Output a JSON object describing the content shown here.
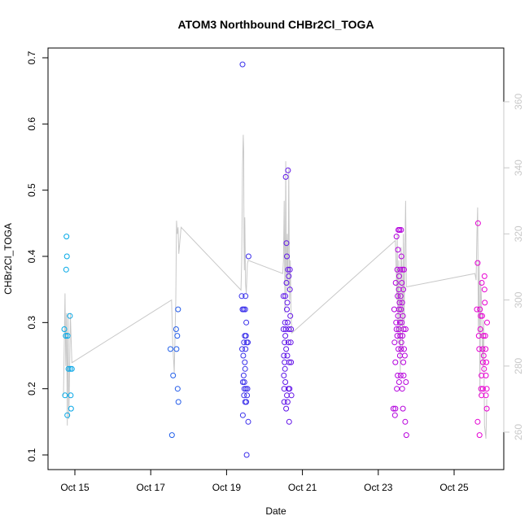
{
  "chart_data": {
    "type": "scatter",
    "title": "ATOM3 Northbound CHBr2Cl_TOGA",
    "xlabel": "Date",
    "ylabel": "CHBr2Cl_TOGA",
    "x_range_days": [
      14.5,
      26.0
    ],
    "ylim": [
      0.08,
      0.72
    ],
    "y2lim": [
      257,
      368
    ],
    "x_ticks": [
      {
        "day": 15,
        "label": "Oct 15"
      },
      {
        "day": 17,
        "label": "Oct 17"
      },
      {
        "day": 19,
        "label": "Oct 19"
      },
      {
        "day": 21,
        "label": "Oct 21"
      },
      {
        "day": 23,
        "label": "Oct 23"
      },
      {
        "day": 25,
        "label": "Oct 25"
      }
    ],
    "y_ticks": [
      {
        "value": 0.1,
        "label": "0.1"
      },
      {
        "value": 0.2,
        "label": "0.2"
      },
      {
        "value": 0.3,
        "label": "0.3"
      },
      {
        "value": 0.4,
        "label": "0.4"
      },
      {
        "value": 0.5,
        "label": "0.5"
      },
      {
        "value": 0.6,
        "label": "0.6"
      },
      {
        "value": 0.7,
        "label": "0.7"
      }
    ],
    "y2_ticks": [
      {
        "value": 260,
        "label": "260"
      },
      {
        "value": 280,
        "label": "280"
      },
      {
        "value": 300,
        "label": "300"
      },
      {
        "value": 320,
        "label": "320"
      },
      {
        "value": 340,
        "label": "340"
      },
      {
        "value": 360,
        "label": "360"
      }
    ],
    "grid": false,
    "line_color": "#c8c8c8",
    "points": [
      [
        14.72,
        0.29
      ],
      [
        14.74,
        0.19
      ],
      [
        14.76,
        0.28
      ],
      [
        14.77,
        0.38
      ],
      [
        14.78,
        0.43
      ],
      [
        14.79,
        0.4
      ],
      [
        14.8,
        0.16
      ],
      [
        14.81,
        0.28
      ],
      [
        14.83,
        0.23
      ],
      [
        14.87,
        0.31
      ],
      [
        14.88,
        0.23
      ],
      [
        14.89,
        0.19
      ],
      [
        14.9,
        0.17
      ],
      [
        14.92,
        0.23
      ],
      [
        17.52,
        0.26
      ],
      [
        17.56,
        0.13
      ],
      [
        17.59,
        0.22
      ],
      [
        17.67,
        0.29
      ],
      [
        17.68,
        0.26
      ],
      [
        17.7,
        0.28
      ],
      [
        17.71,
        0.2
      ],
      [
        17.72,
        0.32
      ],
      [
        17.73,
        0.18
      ],
      [
        19.42,
        0.69
      ],
      [
        19.4,
        0.34
      ],
      [
        19.41,
        0.26
      ],
      [
        19.42,
        0.32
      ],
      [
        19.43,
        0.21
      ],
      [
        19.43,
        0.16
      ],
      [
        19.44,
        0.25
      ],
      [
        19.45,
        0.22
      ],
      [
        19.45,
        0.32
      ],
      [
        19.46,
        0.19
      ],
      [
        19.46,
        0.27
      ],
      [
        19.47,
        0.21
      ],
      [
        19.47,
        0.2
      ],
      [
        19.48,
        0.28
      ],
      [
        19.48,
        0.24
      ],
      [
        19.49,
        0.18
      ],
      [
        19.49,
        0.23
      ],
      [
        19.5,
        0.26
      ],
      [
        19.5,
        0.34
      ],
      [
        19.51,
        0.2
      ],
      [
        19.51,
        0.28
      ],
      [
        19.52,
        0.3
      ],
      [
        19.53,
        0.1
      ],
      [
        19.53,
        0.27
      ],
      [
        19.54,
        0.19
      ],
      [
        19.55,
        0.2
      ],
      [
        19.56,
        0.27
      ],
      [
        19.57,
        0.15
      ],
      [
        19.58,
        0.4
      ],
      [
        19.49,
        0.32
      ],
      [
        19.52,
        0.18
      ],
      [
        20.5,
        0.34
      ],
      [
        20.5,
        0.29
      ],
      [
        20.51,
        0.25
      ],
      [
        20.51,
        0.22
      ],
      [
        20.52,
        0.2
      ],
      [
        20.52,
        0.18
      ],
      [
        20.53,
        0.27
      ],
      [
        20.53,
        0.24
      ],
      [
        20.54,
        0.3
      ],
      [
        20.54,
        0.23
      ],
      [
        20.55,
        0.34
      ],
      [
        20.55,
        0.21
      ],
      [
        20.56,
        0.52
      ],
      [
        20.56,
        0.29
      ],
      [
        20.57,
        0.26
      ],
      [
        20.57,
        0.17
      ],
      [
        20.58,
        0.42
      ],
      [
        20.58,
        0.36
      ],
      [
        20.59,
        0.32
      ],
      [
        20.59,
        0.19
      ],
      [
        20.6,
        0.33
      ],
      [
        20.6,
        0.25
      ],
      [
        20.61,
        0.3
      ],
      [
        20.61,
        0.18
      ],
      [
        20.62,
        0.53
      ],
      [
        20.62,
        0.38
      ],
      [
        20.63,
        0.2
      ],
      [
        20.63,
        0.27
      ],
      [
        20.64,
        0.37
      ],
      [
        20.64,
        0.29
      ],
      [
        20.65,
        0.24
      ],
      [
        20.65,
        0.15
      ],
      [
        20.66,
        0.2
      ],
      [
        20.67,
        0.38
      ],
      [
        20.67,
        0.35
      ],
      [
        20.68,
        0.31
      ],
      [
        20.69,
        0.27
      ],
      [
        20.7,
        0.29
      ],
      [
        20.7,
        0.24
      ],
      [
        20.71,
        0.19
      ],
      [
        20.59,
        0.4
      ],
      [
        20.55,
        0.28
      ],
      [
        23.4,
        0.17
      ],
      [
        23.42,
        0.32
      ],
      [
        23.43,
        0.27
      ],
      [
        23.44,
        0.16
      ],
      [
        23.45,
        0.24
      ],
      [
        23.46,
        0.36
      ],
      [
        23.47,
        0.3
      ],
      [
        23.48,
        0.43
      ],
      [
        23.49,
        0.2
      ],
      [
        23.5,
        0.38
      ],
      [
        23.5,
        0.28
      ],
      [
        23.51,
        0.34
      ],
      [
        23.51,
        0.22
      ],
      [
        23.52,
        0.41
      ],
      [
        23.52,
        0.31
      ],
      [
        23.53,
        0.44
      ],
      [
        23.53,
        0.26
      ],
      [
        23.54,
        0.35
      ],
      [
        23.54,
        0.29
      ],
      [
        23.55,
        0.37
      ],
      [
        23.55,
        0.21
      ],
      [
        23.56,
        0.44
      ],
      [
        23.56,
        0.33
      ],
      [
        23.57,
        0.3
      ],
      [
        23.57,
        0.25
      ],
      [
        23.58,
        0.38
      ],
      [
        23.58,
        0.28
      ],
      [
        23.59,
        0.34
      ],
      [
        23.59,
        0.22
      ],
      [
        23.6,
        0.44
      ],
      [
        23.6,
        0.32
      ],
      [
        23.61,
        0.4
      ],
      [
        23.61,
        0.27
      ],
      [
        23.62,
        0.36
      ],
      [
        23.62,
        0.3
      ],
      [
        23.63,
        0.33
      ],
      [
        23.63,
        0.2
      ],
      [
        23.64,
        0.38
      ],
      [
        23.64,
        0.28
      ],
      [
        23.65,
        0.31
      ],
      [
        23.65,
        0.17
      ],
      [
        23.66,
        0.35
      ],
      [
        23.66,
        0.24
      ],
      [
        23.67,
        0.29
      ],
      [
        23.67,
        0.22
      ],
      [
        23.68,
        0.38
      ],
      [
        23.68,
        0.26
      ],
      [
        23.7,
        0.25
      ],
      [
        23.71,
        0.15
      ],
      [
        23.72,
        0.29
      ],
      [
        23.73,
        0.21
      ],
      [
        23.74,
        0.13
      ],
      [
        23.45,
        0.17
      ],
      [
        23.48,
        0.29
      ],
      [
        23.55,
        0.32
      ],
      [
        23.6,
        0.26
      ],
      [
        25.6,
        0.32
      ],
      [
        25.62,
        0.39
      ],
      [
        25.63,
        0.45
      ],
      [
        25.62,
        0.15
      ],
      [
        25.65,
        0.28
      ],
      [
        25.66,
        0.26
      ],
      [
        25.67,
        0.13
      ],
      [
        25.68,
        0.32
      ],
      [
        25.69,
        0.29
      ],
      [
        25.7,
        0.31
      ],
      [
        25.71,
        0.2
      ],
      [
        25.72,
        0.22
      ],
      [
        25.72,
        0.19
      ],
      [
        25.73,
        0.36
      ],
      [
        25.74,
        0.31
      ],
      [
        25.75,
        0.26
      ],
      [
        25.76,
        0.24
      ],
      [
        25.76,
        0.2
      ],
      [
        25.77,
        0.28
      ],
      [
        25.78,
        0.25
      ],
      [
        25.79,
        0.23
      ],
      [
        25.8,
        0.37
      ],
      [
        25.8,
        0.35
      ],
      [
        25.81,
        0.33
      ],
      [
        25.82,
        0.28
      ],
      [
        25.83,
        0.26
      ],
      [
        25.84,
        0.22
      ],
      [
        25.84,
        0.19
      ],
      [
        25.85,
        0.24
      ],
      [
        25.86,
        0.2
      ],
      [
        25.86,
        0.17
      ],
      [
        25.87,
        0.3
      ]
    ],
    "line_y2": [
      [
        14.7,
        271
      ],
      [
        14.74,
        302
      ],
      [
        14.76,
        280
      ],
      [
        14.78,
        296
      ],
      [
        14.8,
        262
      ],
      [
        14.82,
        296
      ],
      [
        14.84,
        264
      ],
      [
        14.86,
        278
      ],
      [
        14.88,
        296
      ],
      [
        14.9,
        289
      ],
      [
        14.92,
        281
      ],
      [
        17.55,
        300
      ],
      [
        17.58,
        287
      ],
      [
        17.62,
        278
      ],
      [
        17.66,
        300
      ],
      [
        17.68,
        324
      ],
      [
        17.7,
        320
      ],
      [
        17.72,
        322
      ],
      [
        17.74,
        314
      ],
      [
        17.8,
        322
      ],
      [
        19.38,
        303
      ],
      [
        19.4,
        312
      ],
      [
        19.42,
        340
      ],
      [
        19.44,
        350
      ],
      [
        19.45,
        345
      ],
      [
        19.46,
        318
      ],
      [
        19.47,
        309
      ],
      [
        19.48,
        325
      ],
      [
        19.5,
        305
      ],
      [
        19.52,
        302
      ],
      [
        19.55,
        311
      ],
      [
        19.57,
        312
      ],
      [
        20.48,
        308
      ],
      [
        20.5,
        312
      ],
      [
        20.52,
        330
      ],
      [
        20.54,
        296
      ],
      [
        20.56,
        342
      ],
      [
        20.58,
        302
      ],
      [
        20.6,
        320
      ],
      [
        20.62,
        304
      ],
      [
        20.64,
        340
      ],
      [
        20.66,
        300
      ],
      [
        20.68,
        312
      ],
      [
        20.7,
        296
      ],
      [
        20.72,
        290
      ],
      [
        23.45,
        318
      ],
      [
        23.47,
        310
      ],
      [
        23.49,
        300
      ],
      [
        23.5,
        320
      ],
      [
        23.52,
        287
      ],
      [
        23.54,
        312
      ],
      [
        23.56,
        296
      ],
      [
        23.58,
        278
      ],
      [
        23.6,
        316
      ],
      [
        23.62,
        310
      ],
      [
        23.64,
        285
      ],
      [
        23.66,
        320
      ],
      [
        23.68,
        292
      ],
      [
        23.7,
        313
      ],
      [
        23.72,
        330
      ],
      [
        23.74,
        304
      ],
      [
        23.76,
        304
      ],
      [
        25.55,
        308
      ],
      [
        25.58,
        306
      ],
      [
        25.6,
        320
      ],
      [
        25.62,
        328
      ],
      [
        25.64,
        290
      ],
      [
        25.66,
        312
      ],
      [
        25.68,
        271
      ],
      [
        25.7,
        306
      ],
      [
        25.72,
        300
      ],
      [
        25.75,
        280
      ],
      [
        25.78,
        294
      ],
      [
        25.8,
        262
      ],
      [
        25.84,
        258
      ],
      [
        25.86,
        270
      ]
    ]
  }
}
